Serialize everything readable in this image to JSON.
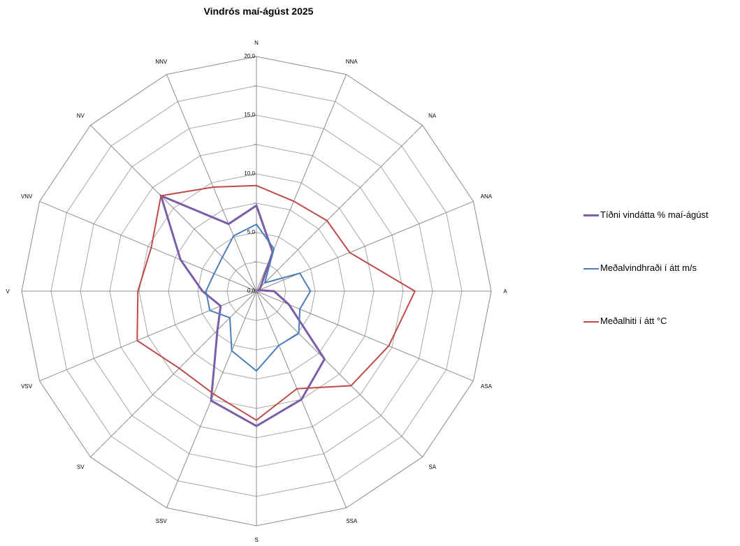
{
  "chart_data": {
    "type": "radar",
    "title": "Vindrós maí-ágúst 2025",
    "directions": [
      "N",
      "NNA",
      "NA",
      "ANA",
      "A",
      "ASA",
      "SA",
      "SSA",
      "S",
      "SSV",
      "SV",
      "VSV",
      "V",
      "VNV",
      "NV",
      "NNV"
    ],
    "radial_ticks": [
      "0,0",
      "5,0",
      "10,0",
      "15,0",
      "20,0"
    ],
    "rlim": [
      0,
      20
    ],
    "grid": true,
    "legend_position": "right",
    "series": [
      {
        "name": "Tíðni vindátta % maí-ágúst",
        "color": "#7b5ea7",
        "stroke_width": 3,
        "values": [
          7.3,
          3.6,
          0.5,
          0.2,
          1.5,
          3.0,
          8.2,
          10.0,
          11.5,
          10.1,
          4.7,
          3.3,
          4.6,
          7.0,
          11.5,
          6.2
        ]
      },
      {
        "name": "Meðalvindhraði í átt m/s",
        "color": "#4a7ebb",
        "stroke_width": 2,
        "values": [
          5.7,
          3.9,
          1.0,
          4.0,
          4.6,
          4.0,
          5.1,
          5.0,
          6.8,
          5.5,
          3.2,
          4.3,
          4.3,
          3.9,
          4.1,
          5.1
        ]
      },
      {
        "name": "Meðalhiti í átt °C",
        "color": "#be4b48",
        "stroke_width": 2,
        "values": [
          9.0,
          8.3,
          8.5,
          8.6,
          13.5,
          12.2,
          11.4,
          9.0,
          11.0,
          9.5,
          9.3,
          11.0,
          10.1,
          9.7,
          11.5,
          9.6
        ]
      }
    ]
  }
}
